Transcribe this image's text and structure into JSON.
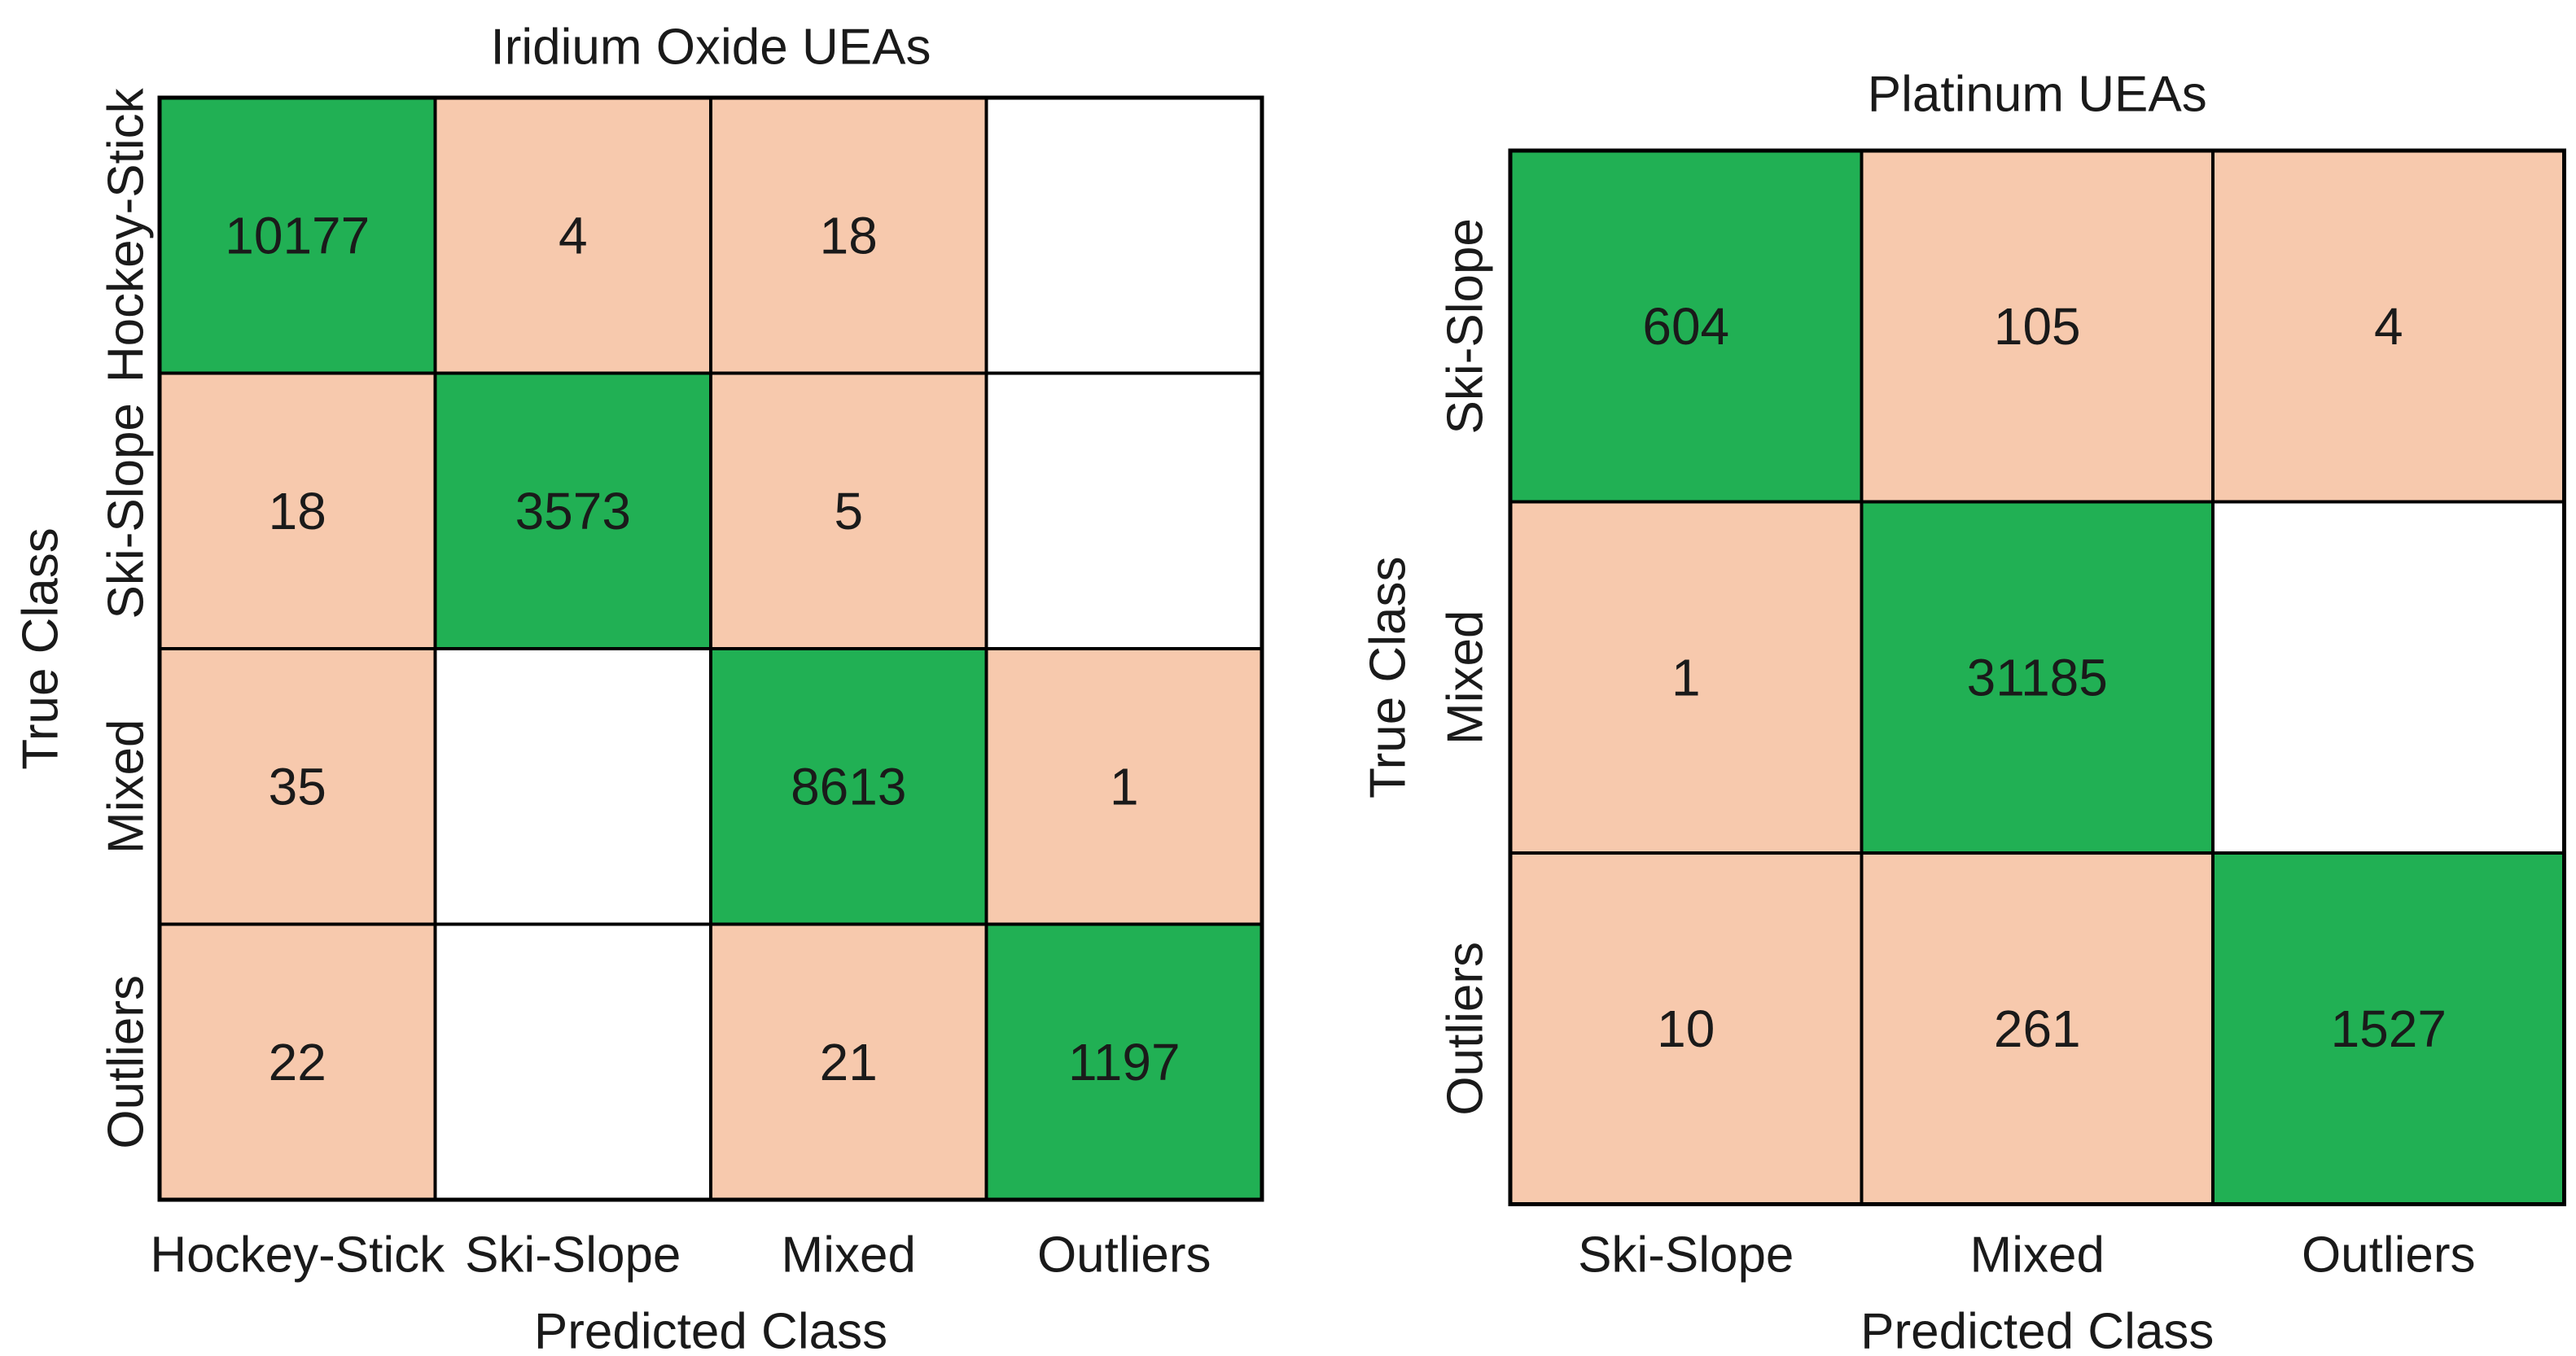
{
  "colors": {
    "correct": "#21b054",
    "incorrect": "#f7c9ad",
    "empty": "#ffffff",
    "grid": "#000000"
  },
  "chart_data": [
    {
      "type": "heatmap",
      "title": "Iridium Oxide UEAs",
      "xlabel": "Predicted Class",
      "ylabel": "True Class",
      "classes": [
        "Hockey-Stick",
        "Ski-Slope",
        "Mixed",
        "Outliers"
      ],
      "matrix": [
        [
          10177,
          4,
          18,
          null
        ],
        [
          18,
          3573,
          5,
          null
        ],
        [
          35,
          null,
          8613,
          1
        ],
        [
          22,
          null,
          21,
          1197
        ]
      ]
    },
    {
      "type": "heatmap",
      "title": "Platinum UEAs",
      "xlabel": "Predicted Class",
      "ylabel": "True Class",
      "classes": [
        "Ski-Slope",
        "Mixed",
        "Outliers"
      ],
      "matrix": [
        [
          604,
          105,
          4
        ],
        [
          1,
          31185,
          null
        ],
        [
          10,
          261,
          1527
        ]
      ]
    }
  ]
}
